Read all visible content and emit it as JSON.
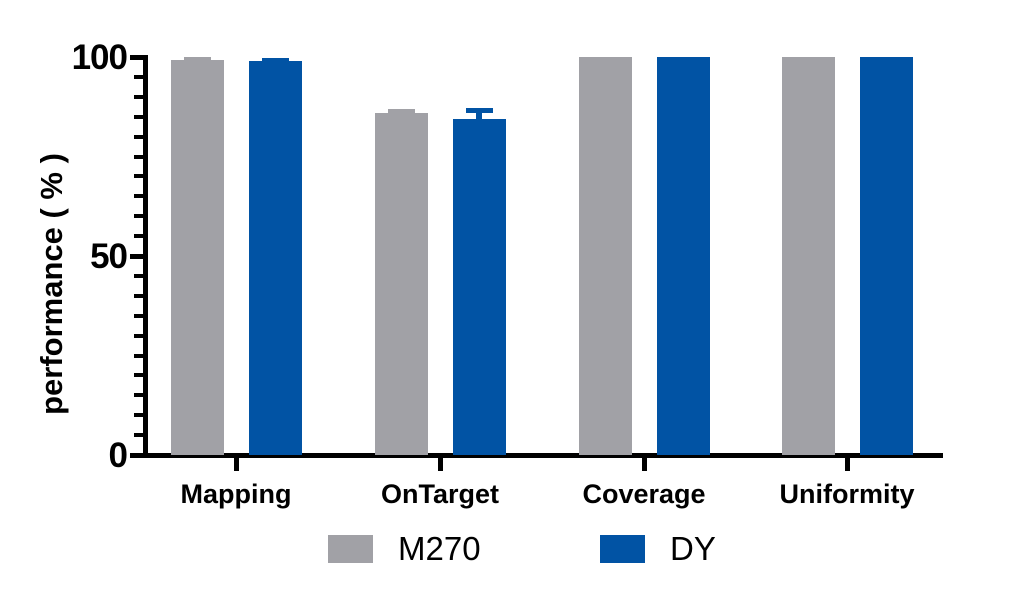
{
  "figure": {
    "background": "#ffffff",
    "axis_color": "#000000"
  },
  "chart_data": {
    "type": "bar",
    "title": "",
    "xlabel": "",
    "ylabel": "performance ( % )",
    "ylim": [
      0,
      100
    ],
    "yticks": [
      0,
      50,
      100
    ],
    "minor_tick_step": 5,
    "grid": false,
    "error_bars": "upper",
    "legend_position": "bottom",
    "categories": [
      "Mapping",
      "OnTarget",
      "Coverage",
      "Uniformity"
    ],
    "series": [
      {
        "name": "M270",
        "color": "#A1A1A6",
        "values": [
          99.3,
          86.0,
          100,
          100
        ],
        "errors": [
          0.6,
          0.9,
          0,
          0
        ]
      },
      {
        "name": "DY",
        "color": "#0153A4",
        "values": [
          98.9,
          84.5,
          100,
          100
        ],
        "errors": [
          0.8,
          2.7,
          0,
          0
        ]
      }
    ]
  },
  "legend": {
    "items": [
      {
        "label": "M270",
        "color": "#A1A1A6"
      },
      {
        "label": "DY",
        "color": "#0153A4"
      }
    ]
  }
}
